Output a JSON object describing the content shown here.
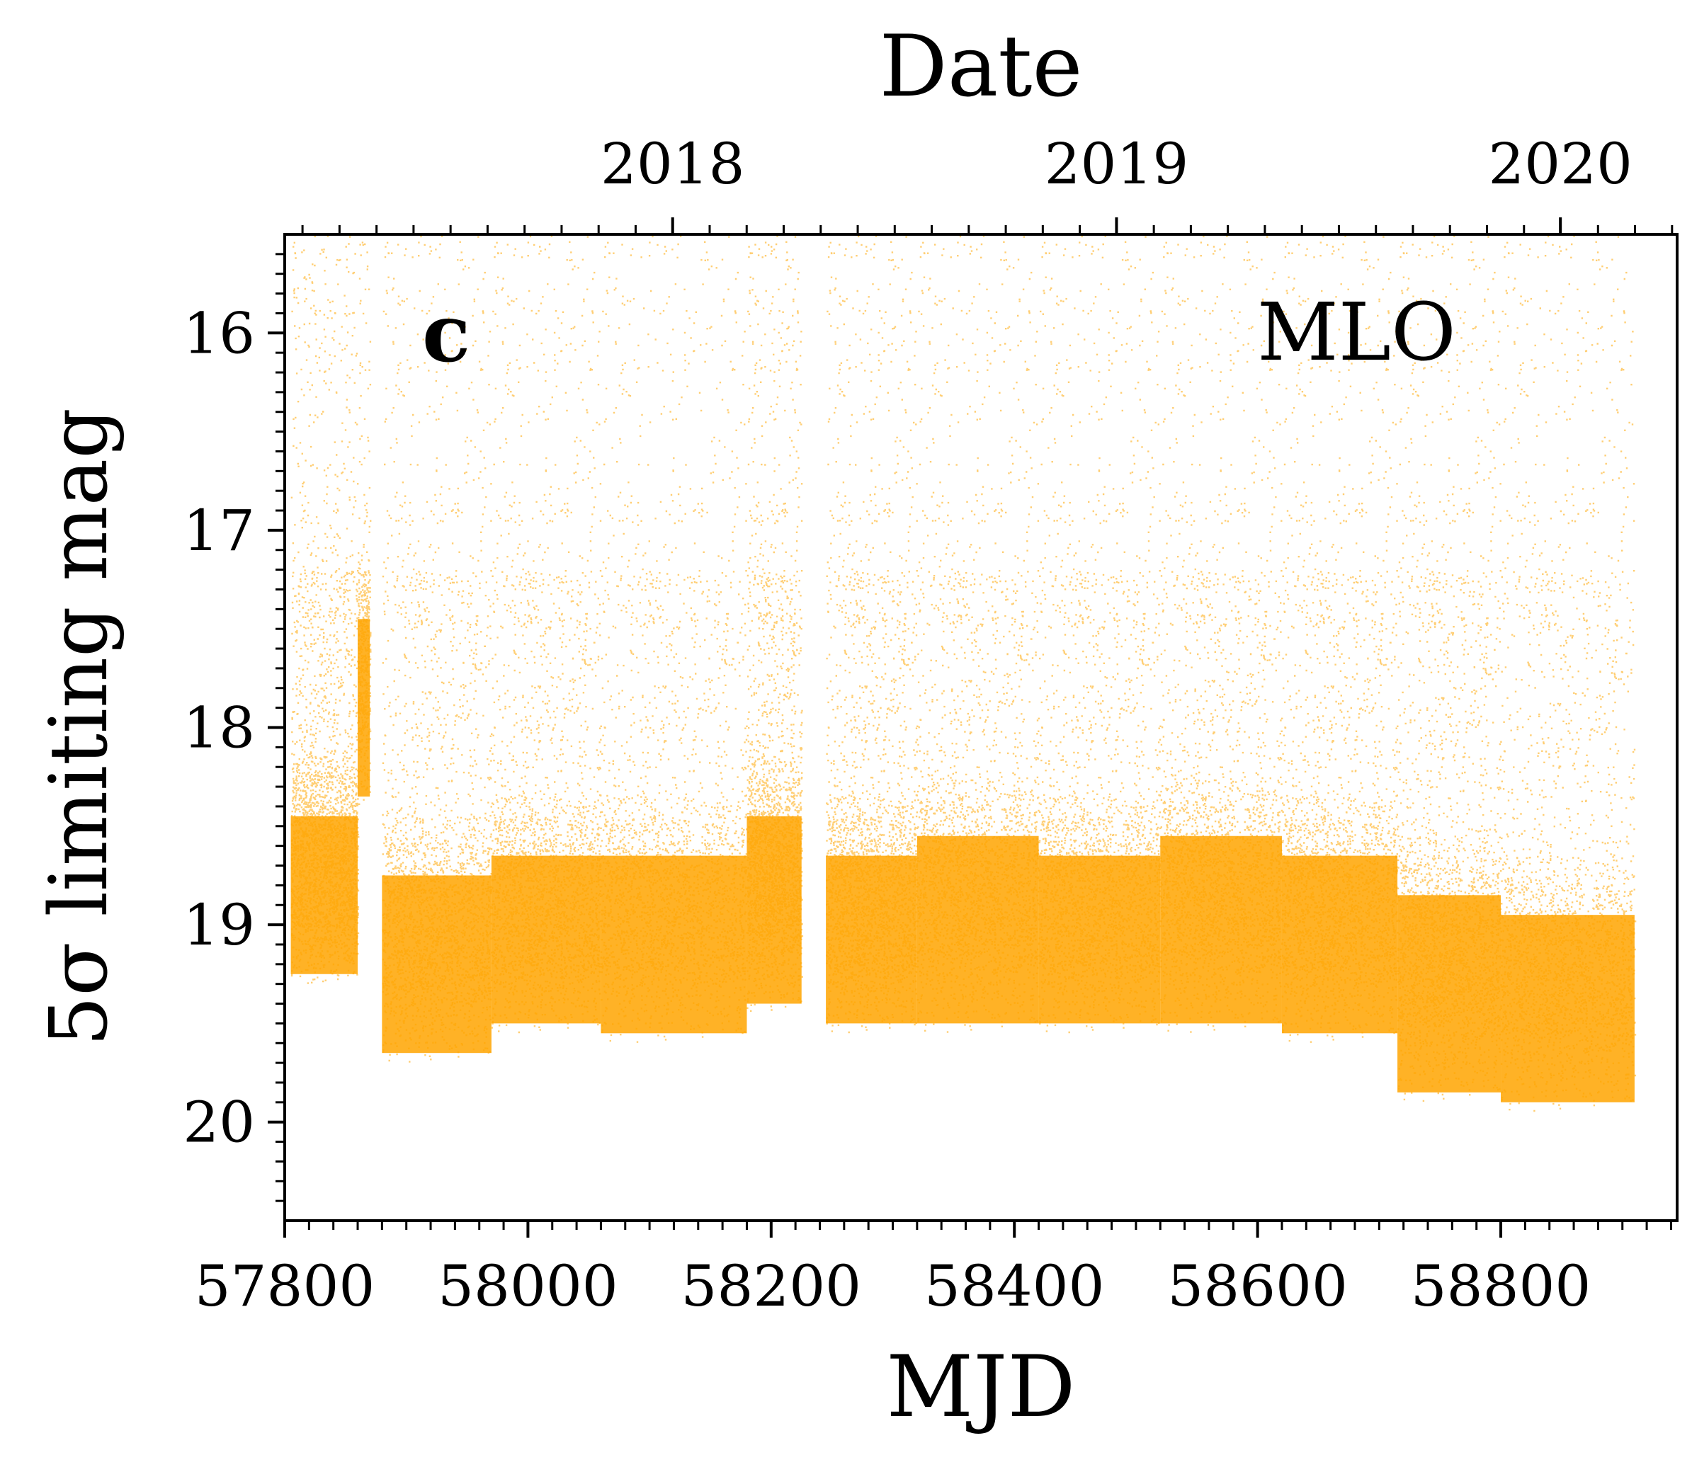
{
  "chart_data": {
    "type": "scatter",
    "panel_label": "c",
    "site_label": "MLO",
    "xlabel": "MJD",
    "ylabel": "5σ limiting mag",
    "top_axis_label": "Date",
    "xlim": [
      57800,
      58945
    ],
    "ylim": [
      20.5,
      15.5
    ],
    "y_inverted": true,
    "x_ticks": [
      "57800",
      "58000",
      "58200",
      "58400",
      "58600",
      "58800"
    ],
    "x_tick_values": [
      57800,
      58000,
      58200,
      58400,
      58600,
      58800
    ],
    "y_ticks": [
      "16",
      "17",
      "18",
      "19",
      "20"
    ],
    "y_tick_values": [
      16,
      17,
      18,
      19,
      20
    ],
    "top_ticks": [
      "2018",
      "2019",
      "2020"
    ],
    "top_tick_values": [
      58119,
      58484,
      58849
    ],
    "marker_color": "#ffa500",
    "series": [
      {
        "name": "MLO",
        "description_segments": [
          {
            "x_start": 57805,
            "x_end": 57860,
            "faint_limit": 19.3,
            "typical": 19.0
          },
          {
            "x_start": 57860,
            "x_end": 57870,
            "faint_limit": 18.4,
            "typical": 18.0
          },
          {
            "x_start": 57880,
            "x_end": 57970,
            "faint_limit": 19.7,
            "typical": 19.3
          },
          {
            "x_start": 57970,
            "x_end": 58060,
            "faint_limit": 19.55,
            "typical": 19.2
          },
          {
            "x_start": 58060,
            "x_end": 58180,
            "faint_limit": 19.6,
            "typical": 19.2
          },
          {
            "x_start": 58180,
            "x_end": 58225,
            "faint_limit": 19.45,
            "typical": 19.0
          },
          {
            "x_start": 58245,
            "x_end": 58320,
            "faint_limit": 19.55,
            "typical": 19.2
          },
          {
            "x_start": 58320,
            "x_end": 58420,
            "faint_limit": 19.55,
            "typical": 19.1
          },
          {
            "x_start": 58420,
            "x_end": 58520,
            "faint_limit": 19.55,
            "typical": 19.2
          },
          {
            "x_start": 58520,
            "x_end": 58620,
            "faint_limit": 19.55,
            "typical": 19.1
          },
          {
            "x_start": 58620,
            "x_end": 58715,
            "faint_limit": 19.6,
            "typical": 19.2
          },
          {
            "x_start": 58715,
            "x_end": 58800,
            "faint_limit": 19.9,
            "typical": 19.4
          },
          {
            "x_start": 58800,
            "x_end": 58910,
            "faint_limit": 19.95,
            "typical": 19.5
          }
        ]
      }
    ]
  }
}
